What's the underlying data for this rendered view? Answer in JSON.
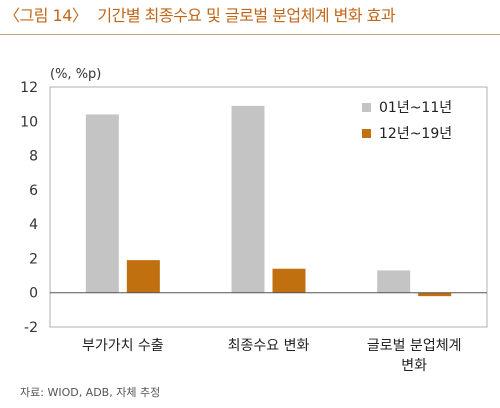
{
  "header": {
    "figure_number": "〈그림 14〉",
    "title": "기간별 최종수요 및 글로벌 분업체계 변화 효과"
  },
  "source": "자료: WIOD, ADB, 자체 추정",
  "colors": {
    "title": "#c0671a",
    "series1": "#c4c4c4",
    "series2": "#c0700f",
    "axis": "#555555"
  },
  "chart_data": {
    "type": "bar",
    "unit_label": "(%, %p)",
    "categories": [
      [
        "부가가치 수출"
      ],
      [
        "최종수요 변화"
      ],
      [
        "글로벌 분업체계",
        "변화"
      ]
    ],
    "series": [
      {
        "name": "01년~11년",
        "values": [
          10.4,
          10.9,
          1.3
        ]
      },
      {
        "name": "12년~19년",
        "values": [
          1.9,
          1.4,
          -0.2
        ]
      }
    ],
    "ylim": [
      -2,
      12
    ],
    "yticks": [
      -2,
      0,
      2,
      4,
      6,
      8,
      10,
      12
    ],
    "legend": "top-right"
  }
}
